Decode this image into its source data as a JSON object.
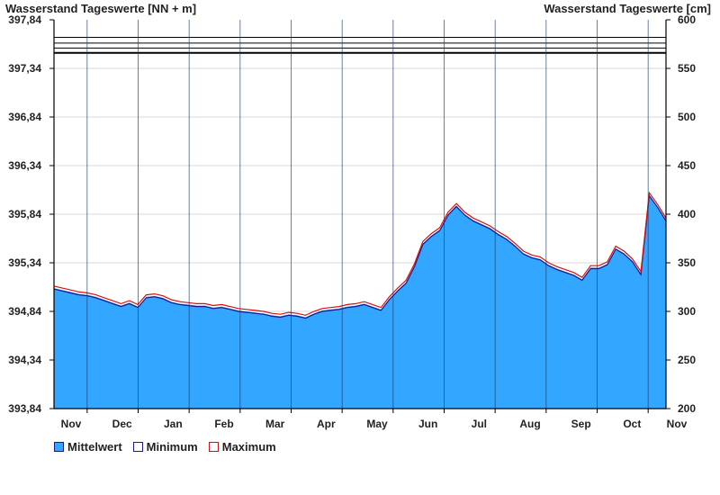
{
  "chart_data": {
    "type": "area",
    "ylabel_left": "Wasserstand Tageswerte [NN + m]",
    "ylabel_right": "Wasserstand Tageswerte [cm]",
    "left_ticks": [
      "393,84",
      "394,34",
      "394,84",
      "395,34",
      "395,84",
      "396,34",
      "396,84",
      "397,34",
      "397,84"
    ],
    "left_tick_values": [
      393.84,
      394.34,
      394.84,
      395.34,
      395.84,
      396.34,
      396.84,
      397.34,
      397.84
    ],
    "right_ticks": [
      "200",
      "250",
      "300",
      "350",
      "400",
      "450",
      "500",
      "550",
      "600"
    ],
    "right_tick_values": [
      200,
      250,
      300,
      350,
      400,
      450,
      500,
      550,
      600
    ],
    "ylim_cm": [
      200,
      600
    ],
    "months": [
      "Nov",
      "Dec",
      "Jan",
      "Feb",
      "Mar",
      "Apr",
      "May",
      "Jun",
      "Jul",
      "Aug",
      "Sep",
      "Oct",
      "Nov"
    ],
    "reference_lines_cm": [
      582,
      576,
      571,
      566
    ],
    "x": [
      0,
      5,
      10,
      15,
      20,
      25,
      30,
      35,
      40,
      45,
      50,
      55,
      60,
      65,
      70,
      75,
      80,
      85,
      90,
      95,
      100,
      105,
      110,
      115,
      120,
      125,
      130,
      135,
      140,
      145,
      150,
      155,
      160,
      165,
      170,
      175,
      180,
      185,
      190,
      195,
      200,
      205,
      210,
      215,
      220,
      225,
      230,
      235,
      240,
      245,
      250,
      255,
      260,
      265,
      270,
      275,
      280,
      285,
      290,
      295,
      300,
      305,
      310,
      315,
      320,
      325,
      330,
      335,
      340,
      345,
      350,
      355,
      360,
      365
    ],
    "series": [
      {
        "name": "Mittelwert",
        "values": [
          324,
          322,
          320,
          318,
          317,
          315,
          312,
          309,
          306,
          309,
          305,
          315,
          316,
          314,
          310,
          308,
          307,
          306,
          306,
          304,
          305,
          303,
          301,
          300,
          299,
          298,
          296,
          295,
          297,
          296,
          294,
          298,
          301,
          302,
          303,
          305,
          306,
          308,
          305,
          302,
          313,
          322,
          330,
          347,
          370,
          378,
          384,
          400,
          409,
          400,
          394,
          390,
          386,
          380,
          375,
          368,
          360,
          356,
          354,
          348,
          344,
          341,
          338,
          333,
          345,
          345,
          349,
          365,
          360,
          352,
          339,
          420,
          408,
          394
        ]
      },
      {
        "name": "Minimum",
        "values": [
          323,
          321,
          319,
          317,
          316,
          314,
          311,
          308,
          305,
          308,
          304,
          314,
          315,
          313,
          309,
          307,
          306,
          305,
          305,
          303,
          304,
          302,
          300,
          299,
          298,
          297,
          295,
          294,
          296,
          295,
          293,
          297,
          300,
          301,
          302,
          304,
          305,
          307,
          304,
          301,
          312,
          321,
          329,
          346,
          369,
          377,
          383,
          399,
          408,
          399,
          393,
          389,
          385,
          379,
          374,
          367,
          359,
          355,
          353,
          347,
          343,
          340,
          337,
          332,
          344,
          344,
          348,
          364,
          359,
          351,
          338,
          419,
          407,
          393
        ]
      },
      {
        "name": "Maximum",
        "values": [
          326,
          324,
          322,
          320,
          319,
          317,
          314,
          311,
          308,
          311,
          307,
          317,
          318,
          316,
          312,
          310,
          309,
          308,
          308,
          306,
          307,
          305,
          303,
          302,
          301,
          300,
          298,
          297,
          299,
          298,
          296,
          300,
          303,
          304,
          305,
          307,
          308,
          310,
          307,
          304,
          315,
          324,
          332,
          349,
          372,
          380,
          386,
          402,
          411,
          402,
          396,
          392,
          388,
          382,
          377,
          370,
          362,
          358,
          356,
          350,
          346,
          343,
          340,
          335,
          347,
          347,
          351,
          367,
          362,
          354,
          341,
          422,
          410,
          396
        ]
      }
    ],
    "legend": [
      "Mittelwert",
      "Minimum",
      "Maximum"
    ],
    "colors": {
      "fill": "#33a6ff",
      "minimum": "#1a1a8c",
      "maximum": "#d41111",
      "grid": "#d9d9d9"
    },
    "grid": true
  }
}
